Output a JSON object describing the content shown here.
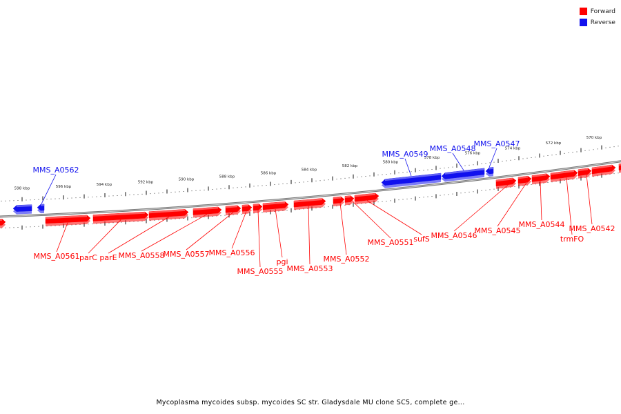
{
  "legend": {
    "forward_label": "Forward",
    "reverse_label": "Reverse",
    "forward_color": "#ff0000",
    "reverse_color": "#1111ee"
  },
  "caption": "Mycoplasma mycoides subsp. mycoides SC str. Gladysdale MU clone SC5, complete ge...",
  "ticks": [
    "598 kbp",
    "596 kbp",
    "594 kbp",
    "592 kbp",
    "590 kbp",
    "588 kbp",
    "586 kbp",
    "584 kbp",
    "582 kbp",
    "580 kbp",
    "578 kbp",
    "576 kbp",
    "574 kbp",
    "572 kbp",
    "570 kbp"
  ],
  "genes_forward": [
    "MMS_A0561",
    "parC",
    "parE",
    "MMS_A0558",
    "MMS_A0557",
    "MMS_A0556",
    "MMS_A0555",
    "pgi",
    "MMS_A0553",
    "MMS_A0552",
    "MMS_A0551",
    "sufS",
    "MMS_A0546",
    "MMS_A0545",
    "MMS_A0544",
    "trmFO",
    "MMS_A0542"
  ],
  "genes_reverse": [
    "MMS_A0562",
    "MMS_A0549",
    "MMS_A0548",
    "MMS_A0547"
  ]
}
